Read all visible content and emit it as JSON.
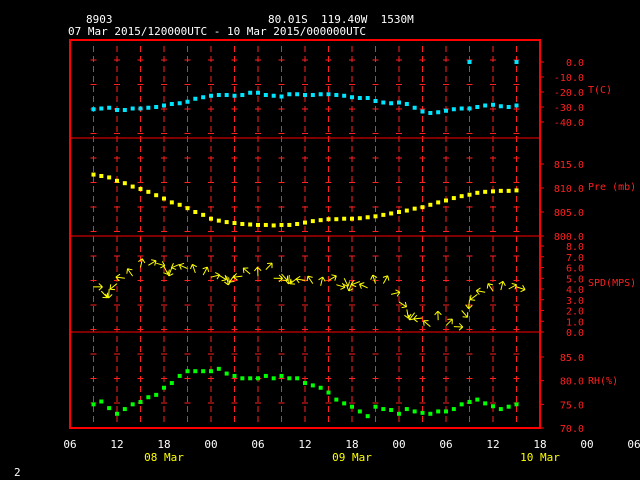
{
  "header": {
    "station_id": "8903",
    "location": "80.01S  119.40W  1530M",
    "time_range": "07 Mar 2015/120000UTC - 10 Mar 2015/000000UTC"
  },
  "footer": {
    "page_number": "2"
  },
  "colors": {
    "frame": "#ff0000",
    "temp": "#00e5ff",
    "pres": "#ffff00",
    "wind": "#ffff00",
    "rh": "#00ff00",
    "tick": "#ff2020"
  },
  "x_axis": {
    "hour_labels": [
      "06",
      "12",
      "18",
      "00",
      "06",
      "12",
      "18",
      "00",
      "06",
      "12",
      "18",
      "00",
      "06"
    ],
    "date_labels": [
      "08 Mar",
      "09 Mar",
      "10 Mar"
    ]
  },
  "chart_data": [
    {
      "type": "scatter",
      "panel": "T",
      "ylabel": "T(C)",
      "ylim": [
        -40,
        0
      ],
      "yticks": [
        "0.0",
        "-10.0",
        "-20.0",
        "-30.0",
        "-40.0"
      ],
      "x": [
        12,
        14,
        16,
        18,
        20,
        22,
        24,
        26,
        28,
        30,
        32,
        34,
        36,
        38,
        40,
        42,
        44,
        46,
        48,
        50,
        52,
        54,
        56,
        58,
        60,
        62,
        64,
        66,
        68,
        70,
        72,
        74,
        76,
        78,
        80,
        82,
        84,
        86,
        88,
        90,
        92,
        94,
        96,
        98,
        100,
        102,
        104,
        106,
        108,
        110,
        112,
        114,
        116,
        118,
        120
      ],
      "values": [
        -31.5,
        -31,
        -30.5,
        -32,
        -32,
        -31,
        -31,
        -30.5,
        -30,
        -29,
        -28,
        -27.5,
        -26.5,
        -24.5,
        -23.5,
        -22.5,
        -22,
        -22,
        -22.5,
        -22,
        -20.5,
        -20.5,
        -22,
        -22.5,
        -23,
        -21.5,
        -21.5,
        -22,
        -22,
        -21.5,
        -21.5,
        -22,
        -22.5,
        -23.5,
        -24,
        -24,
        -26,
        -27,
        -27.5,
        -27,
        -28,
        -30.5,
        -33,
        -34,
        -33.5,
        -32.5,
        -31.5,
        -31,
        -31,
        -30,
        -29,
        -28.5,
        -29.5,
        -30,
        -29
      ],
      "x_extra": [
        108,
        120
      ],
      "values_extra": [
        0,
        0
      ]
    },
    {
      "type": "scatter",
      "panel": "Pre",
      "ylabel": "Pre (mb)",
      "ylim": [
        800,
        815
      ],
      "yticks": [
        "815.0",
        "810.0",
        "805.0",
        "800.0"
      ],
      "x": [
        12,
        14,
        16,
        18,
        20,
        22,
        24,
        26,
        28,
        30,
        32,
        34,
        36,
        38,
        40,
        42,
        44,
        46,
        48,
        50,
        52,
        54,
        56,
        58,
        60,
        62,
        64,
        66,
        68,
        70,
        72,
        74,
        76,
        78,
        80,
        82,
        84,
        86,
        88,
        90,
        92,
        94,
        96,
        98,
        100,
        102,
        104,
        106,
        108,
        110,
        112,
        114,
        116,
        118,
        120
      ],
      "values": [
        812.8,
        812.5,
        812.2,
        811.5,
        811,
        810.3,
        809.8,
        809.2,
        808.5,
        807.8,
        807,
        806.5,
        805.8,
        805,
        804.4,
        803.6,
        803.2,
        802.9,
        802.7,
        802.5,
        802.4,
        802.3,
        802.3,
        802.2,
        802.3,
        802.3,
        802.5,
        802.8,
        803.1,
        803.3,
        803.5,
        803.5,
        803.6,
        803.6,
        803.7,
        803.9,
        804.1,
        804.4,
        804.7,
        805,
        805.3,
        805.7,
        806,
        806.5,
        807,
        807.4,
        807.9,
        808.3,
        808.6,
        809,
        809.2,
        809.3,
        809.4,
        809.4,
        809.5
      ]
    },
    {
      "type": "wind_barbs",
      "panel": "SPD",
      "ylabel": "SPD(MPS)",
      "ylim": [
        0,
        8
      ],
      "yticks": [
        "8.0",
        "7.0",
        "6.0",
        "5.0",
        "4.0",
        "3.0",
        "2.0",
        "1.0",
        "0.0"
      ],
      "x": [
        12,
        14,
        16,
        18,
        20,
        22,
        24,
        26,
        28,
        30,
        32,
        34,
        36,
        38,
        40,
        42,
        44,
        46,
        48,
        50,
        52,
        54,
        56,
        58,
        60,
        62,
        64,
        66,
        68,
        70,
        72,
        74,
        76,
        78,
        80,
        82,
        84,
        86,
        88,
        90,
        92,
        94,
        96,
        98,
        100,
        102,
        104,
        106,
        108,
        110,
        112,
        114,
        116,
        118,
        120
      ],
      "values": [
        4.2,
        3.8,
        4,
        4.5,
        5,
        5.2,
        6,
        6.2,
        6.4,
        6.1,
        6,
        6.3,
        5.9,
        5.5,
        5.3,
        5.1,
        5.3,
        5.2,
        5.3,
        5.2,
        5.4,
        5.2,
        5.8,
        5,
        5.4,
        5.3,
        5,
        4.8,
        4.5,
        4.3,
        4.8,
        4.4,
        5,
        4.6,
        4.7,
        4.1,
        4.5,
        4.5,
        3.5,
        2.8,
        2.1,
        1.8,
        1.3,
        0.5,
        1.1,
        0.6,
        0.5,
        2,
        3,
        3.5,
        3.7,
        3.8,
        3.9,
        4,
        4.2
      ]
    },
    {
      "type": "scatter",
      "panel": "RH",
      "ylabel": "RH(%)",
      "ylim": [
        70,
        85
      ],
      "yticks": [
        "85.0",
        "80.0",
        "75.0",
        "70.0"
      ],
      "x": [
        12,
        14,
        16,
        18,
        20,
        22,
        24,
        26,
        28,
        30,
        32,
        34,
        36,
        38,
        40,
        42,
        44,
        46,
        48,
        50,
        52,
        54,
        56,
        58,
        60,
        62,
        64,
        66,
        68,
        70,
        72,
        74,
        76,
        78,
        80,
        82,
        84,
        86,
        88,
        90,
        92,
        94,
        96,
        98,
        100,
        102,
        104,
        106,
        108,
        110,
        112,
        114,
        116,
        118,
        120
      ],
      "values": [
        75,
        75.6,
        74.2,
        73,
        74,
        75,
        75.5,
        76.5,
        77,
        78.5,
        79.5,
        81,
        82,
        82,
        82,
        82,
        82.5,
        81.5,
        81,
        80.5,
        80.5,
        80.5,
        81,
        80.5,
        81,
        80.5,
        80.5,
        79.5,
        79,
        78.5,
        77.5,
        76,
        75.2,
        74.5,
        73.5,
        72.5,
        74.5,
        74,
        73.8,
        73,
        74,
        73.5,
        73.2,
        73,
        73.5,
        73.5,
        74,
        75,
        75.5,
        76,
        75.2,
        74.6,
        74,
        74.5,
        75
      ]
    }
  ]
}
